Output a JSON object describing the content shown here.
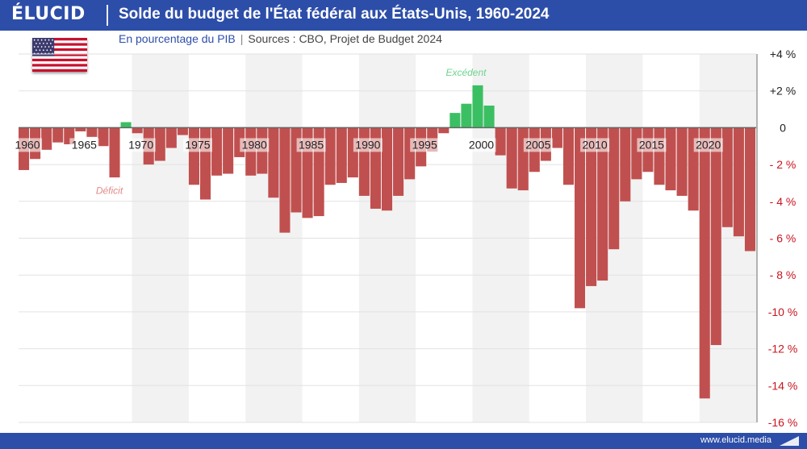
{
  "header": {
    "logo": "ÉLUCID",
    "title": "Solde du budget de l'État fédéral aux États-Unis, 1960-2024"
  },
  "subtitle": {
    "unit": "En pourcentage du PIB",
    "separator": "|",
    "sources": "Sources : CBO, Projet de Budget 2024"
  },
  "footer": {
    "url": "www.elucid.media"
  },
  "colors": {
    "brand": "#2d4ea8",
    "deficit": "#c0504f",
    "surplus": "#3bbf63",
    "negative_tick": "#c8141e",
    "band": "#f2f2f2"
  },
  "chart_data": {
    "type": "bar",
    "x": [
      1960,
      1961,
      1962,
      1963,
      1964,
      1965,
      1966,
      1967,
      1968,
      1969,
      1970,
      1971,
      1972,
      1973,
      1974,
      1975,
      1976,
      1977,
      1978,
      1979,
      1980,
      1981,
      1982,
      1983,
      1984,
      1985,
      1986,
      1987,
      1988,
      1989,
      1990,
      1991,
      1992,
      1993,
      1994,
      1995,
      1996,
      1997,
      1998,
      1999,
      2000,
      2001,
      2002,
      2003,
      2004,
      2005,
      2006,
      2007,
      2008,
      2009,
      2010,
      2011,
      2012,
      2013,
      2014,
      2015,
      2016,
      2017,
      2018,
      2019,
      2020,
      2021,
      2022,
      2023,
      2024
    ],
    "values": [
      -2.3,
      -1.7,
      -1.2,
      -0.8,
      -0.9,
      -0.2,
      -0.5,
      -1.0,
      -2.7,
      0.3,
      -0.3,
      -2.0,
      -1.8,
      -1.1,
      -0.4,
      -3.1,
      -3.9,
      -2.6,
      -2.5,
      -1.6,
      -2.6,
      -2.5,
      -3.8,
      -5.7,
      -4.6,
      -4.9,
      -4.8,
      -3.1,
      -3.0,
      -2.7,
      -3.7,
      -4.4,
      -4.5,
      -3.7,
      -2.8,
      -2.1,
      -1.3,
      -0.3,
      0.8,
      1.3,
      2.3,
      1.2,
      -1.5,
      -3.3,
      -3.4,
      -2.4,
      -1.8,
      -1.1,
      -3.1,
      -9.8,
      -8.6,
      -8.3,
      -6.6,
      -4.0,
      -2.8,
      -2.4,
      -3.1,
      -3.4,
      -3.7,
      -4.5,
      -14.7,
      -11.8,
      -5.4,
      -5.9,
      -6.7
    ],
    "x_tick_labels": [
      "1960",
      "1965",
      "1970",
      "1975",
      "1980",
      "1985",
      "1990",
      "1995",
      "2000",
      "2005",
      "2010",
      "2015",
      "2020"
    ],
    "x_tick_years": [
      1960,
      1965,
      1970,
      1975,
      1980,
      1985,
      1990,
      1995,
      2000,
      2005,
      2010,
      2015,
      2020
    ],
    "y_ticks": [
      4,
      2,
      0,
      -2,
      -4,
      -6,
      -8,
      -10,
      -12,
      -14,
      -16
    ],
    "y_tick_labels": [
      "+4 %",
      "+2 %",
      "0",
      "- 2 %",
      "- 4 %",
      "- 6 %",
      "- 8 %",
      "-10 %",
      "-12 %",
      "-14 %",
      "-16 %"
    ],
    "ylim": [
      -16,
      4
    ],
    "annotations": {
      "surplus": "Excédent",
      "deficit": "Déficit"
    },
    "grid": true,
    "axis_position": "right"
  }
}
